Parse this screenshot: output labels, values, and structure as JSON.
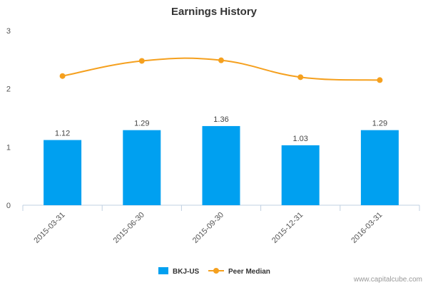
{
  "chart_data": {
    "type": "bar",
    "title": "Earnings History",
    "categories": [
      "2015-03-31",
      "2015-06-30",
      "2015-09-30",
      "2015-12-31",
      "2016-03-31"
    ],
    "series": [
      {
        "name": "BKJ-US",
        "type": "bar",
        "color": "#00a0f0",
        "values": [
          1.12,
          1.29,
          1.36,
          1.03,
          1.29
        ],
        "labels": [
          "1.12",
          "1.29",
          "1.36",
          "1.03",
          "1.29"
        ]
      },
      {
        "name": "Peer Median",
        "type": "line",
        "color": "#f5a01e",
        "values": [
          2.22,
          2.48,
          2.49,
          2.2,
          2.15
        ]
      }
    ],
    "ylim": [
      0,
      3
    ],
    "yticks": [
      "0",
      "1",
      "2",
      "3"
    ],
    "xlabel": "",
    "ylabel": "",
    "grid": false,
    "legend_position": "bottom"
  },
  "watermark": "www.capitalcube.com"
}
